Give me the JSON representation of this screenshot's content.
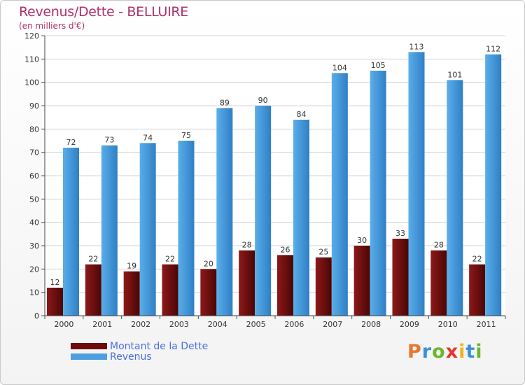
{
  "chart_data": {
    "type": "bar",
    "title": "Revenus/Dette - BELLUIRE",
    "subtitle": "(en milliers d'€)",
    "categories": [
      "2000",
      "2001",
      "2002",
      "2003",
      "2004",
      "2005",
      "2006",
      "2007",
      "2008",
      "2009",
      "2010",
      "2011"
    ],
    "series": [
      {
        "name": "Montant de la Dette",
        "values": [
          12,
          22,
          19,
          22,
          20,
          28,
          26,
          25,
          30,
          33,
          28,
          22
        ],
        "color": "#6e0a0a"
      },
      {
        "name": "Revenus",
        "values": [
          72,
          73,
          74,
          75,
          89,
          90,
          84,
          104,
          105,
          113,
          101,
          112
        ],
        "color": "#4d9fe0"
      }
    ],
    "ylim": [
      0,
      120
    ],
    "yticks": [
      0,
      10,
      20,
      30,
      40,
      50,
      60,
      70,
      80,
      90,
      100,
      110,
      120
    ],
    "grid": true,
    "legend_position": "bottom-left"
  },
  "logo": {
    "letters": [
      "P",
      "r",
      "o",
      "x",
      "i",
      "t",
      "i"
    ],
    "colors": [
      "#e8762c",
      "#3b8fd8",
      "#6ab82e",
      "#e8332c",
      "#f2b21c",
      "#3b8fd8",
      "#6ab82e"
    ]
  }
}
